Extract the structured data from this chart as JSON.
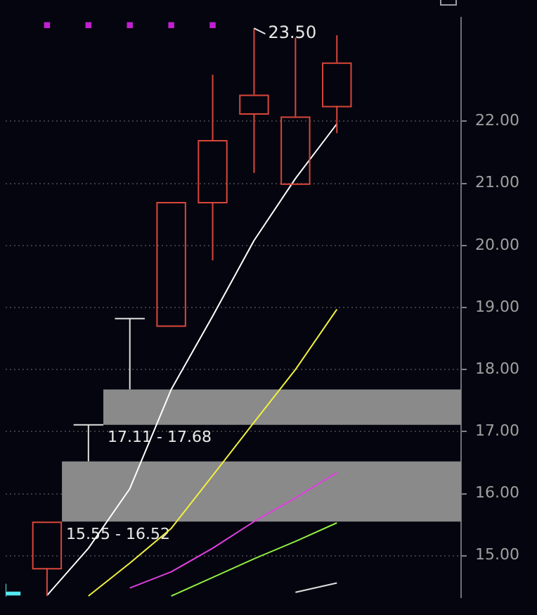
{
  "chart_data": {
    "type": "candlestick",
    "categories": [
      null,
      null,
      null,
      null,
      null,
      null,
      null,
      null,
      null,
      null,
      null,
      null
    ],
    "ohlc": [
      [
        14.42,
        14.55,
        14.34,
        14.36
      ],
      [
        14.8,
        15.55,
        14.35,
        15.55
      ],
      [
        17.11,
        17.11,
        16.52,
        17.11
      ],
      [
        18.82,
        18.82,
        17.68,
        18.82
      ],
      [
        18.71,
        20.7,
        18.71,
        20.7
      ],
      [
        20.7,
        22.75,
        19.76,
        21.7
      ],
      [
        22.13,
        23.5,
        21.17,
        22.43
      ],
      [
        21.0,
        23.35,
        21.0,
        22.08
      ],
      [
        22.25,
        23.39,
        21.81,
        22.95
      ],
      null,
      null,
      null
    ],
    "colors": [
      "#54e8f0",
      "#d9473a",
      "#e0e0e0",
      "#e0e0e0",
      "#d9473a",
      "#d9473a",
      "#d9473a",
      "#d9473a",
      "#d9473a",
      null,
      null,
      null
    ],
    "series": [
      {
        "type": "line",
        "color": "#ffffff",
        "values": [
          null,
          14.36,
          15.12,
          16.08,
          17.68,
          18.86,
          20.08,
          21.08,
          21.96,
          null,
          null,
          null
        ]
      },
      {
        "type": "line",
        "color": "#f0f040",
        "values": [
          null,
          null,
          14.35,
          14.88,
          15.44,
          16.29,
          17.15,
          18.0,
          18.97,
          null,
          null,
          null
        ]
      },
      {
        "type": "line",
        "color": "#e040e0",
        "values": [
          null,
          null,
          null,
          14.48,
          14.74,
          15.12,
          15.55,
          15.93,
          16.34,
          null,
          null,
          null
        ]
      },
      {
        "type": "line",
        "color": "#90f040",
        "values": [
          null,
          null,
          null,
          null,
          14.35,
          14.65,
          14.95,
          15.23,
          15.53,
          null,
          null,
          null
        ]
      },
      {
        "type": "line",
        "color": "#e0e0e0",
        "values": [
          null,
          null,
          null,
          null,
          null,
          null,
          null,
          14.41,
          14.56,
          null,
          null,
          null
        ]
      },
      {
        "type": "scatter",
        "color": "#c020d0",
        "marker": "square",
        "values": [
          null,
          23.55,
          23.55,
          23.55,
          23.55,
          23.55,
          null,
          null,
          null,
          null,
          null,
          null
        ]
      }
    ],
    "bands": [
      {
        "axis": "y",
        "from": 15.55,
        "to": 16.52,
        "label": "15.55 - 16.52",
        "color": "#8a8a8a"
      },
      {
        "axis": "y",
        "from": 17.11,
        "to": 17.68,
        "label": "17.11 - 17.68",
        "color": "#8a8a8a"
      }
    ],
    "annotations": [
      "23.50"
    ],
    "ylim": [
      14.33,
      23.67
    ],
    "yticks": [
      {
        "value": 15,
        "label": "15.00"
      },
      {
        "value": 16,
        "label": "16.00"
      },
      {
        "value": 17,
        "label": "17.00"
      },
      {
        "value": 18,
        "label": "18.00"
      },
      {
        "value": 19,
        "label": "19.00"
      },
      {
        "value": 20,
        "label": "20.00"
      },
      {
        "value": 21,
        "label": "21.00"
      },
      {
        "value": 22,
        "label": "22.00"
      }
    ],
    "grid": "y",
    "legend": false,
    "tick_labels": "y"
  }
}
